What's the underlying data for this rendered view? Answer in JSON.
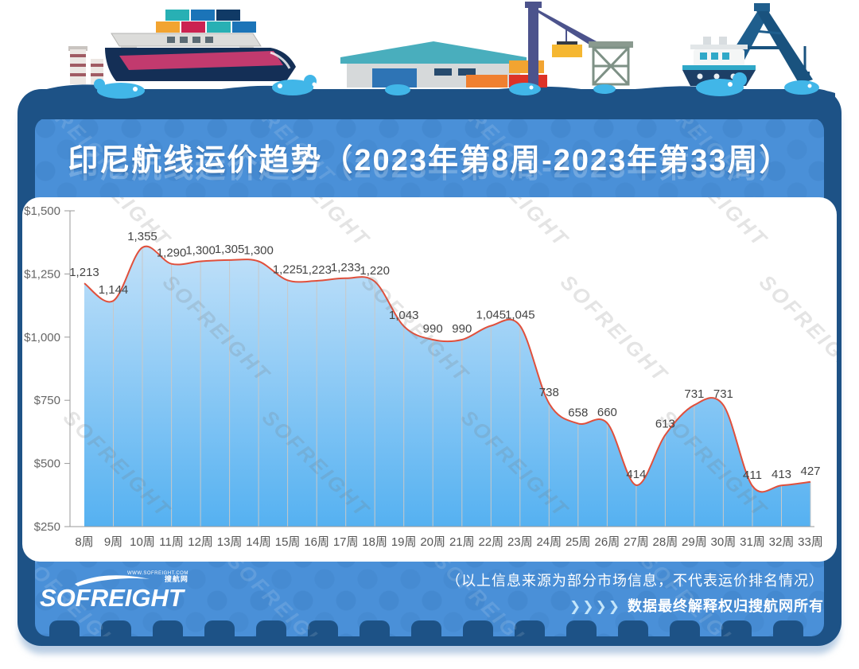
{
  "title": "印尼航线运价趋势（2023年第8周-2023年第33周）",
  "brand": {
    "logo_text": "SOFREIGHT",
    "logo_site": "WWW.SOFREIGHT.COM",
    "logo_cn": "搜航网"
  },
  "footer": {
    "disclaimer": "（以上信息来源为部分市场信息，不代表运价排名情况）",
    "arrows": "❯❯❯❯",
    "rights": "数据最终解释权归搜航网所有"
  },
  "watermark_text": "SOFREIGHT",
  "colors": {
    "card": "#1d5286",
    "panel_blue": "#4a90d8",
    "line": "#e0503c",
    "area_top": "#cfe7fa",
    "area_bottom": "#55b1f1",
    "grid": "#c8c8c8",
    "axis": "#999999",
    "tick_text": "#666666",
    "x_text": "#555555",
    "value_text": "#444444",
    "splash": "#41b6e8"
  },
  "chart_data": {
    "type": "area",
    "title": "印尼航线运价趋势（2023年第8周-2023年第33周）",
    "categories": [
      "8周",
      "9周",
      "10周",
      "11周",
      "12周",
      "13周",
      "14周",
      "15周",
      "16周",
      "17周",
      "18周",
      "19周",
      "20周",
      "21周",
      "22周",
      "23周",
      "24周",
      "25周",
      "26周",
      "27周",
      "28周",
      "29周",
      "30周",
      "31周",
      "32周",
      "33周"
    ],
    "values": [
      1213,
      1144,
      1355,
      1290,
      1300,
      1305,
      1300,
      1225,
      1223,
      1233,
      1220,
      1043,
      990,
      990,
      1045,
      1045,
      738,
      658,
      660,
      414,
      613,
      731,
      731,
      411,
      413,
      427
    ],
    "value_labels": [
      "1,213",
      "1,144",
      "1,355",
      "1,290",
      "1,300",
      "1,305",
      "1,300",
      "1,225",
      "1,223",
      "1,233",
      "1,220",
      "1,043",
      "990",
      "990",
      "1,045",
      "1,045",
      "738",
      "658",
      "660",
      "414",
      "613",
      "731",
      "731",
      "411",
      "413",
      "427"
    ],
    "ytick_values": [
      250,
      500,
      750,
      1000,
      1250,
      1500
    ],
    "ytick_labels": [
      "$250",
      "$500",
      "$750",
      "$1,000",
      "$1,250",
      "$1,500"
    ],
    "ylim": [
      250,
      1500
    ],
    "xlabel": "",
    "ylabel": "",
    "legend": "none",
    "grid": "vertical-per-point",
    "smooth": true
  }
}
